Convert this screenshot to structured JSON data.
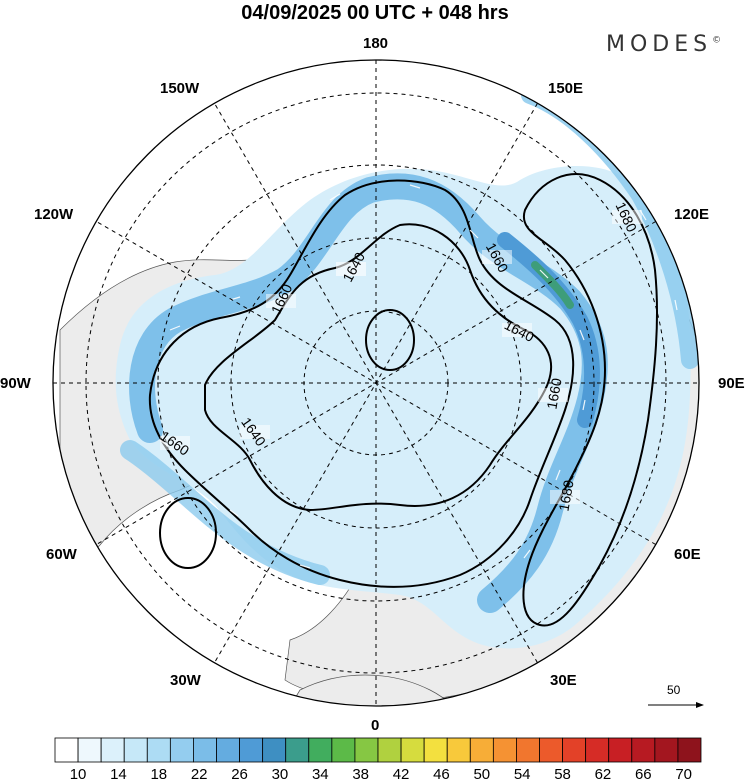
{
  "title": "04/09/2025  00 UTC  + 048 hrs",
  "brand": {
    "name": "MODES",
    "mark": "©"
  },
  "longitudes": [
    "180",
    "150E",
    "120E",
    "90E",
    "60E",
    "30E",
    "0",
    "30W",
    "60W",
    "90W",
    "120W",
    "150W"
  ],
  "contour_labels": [
    "1640",
    "1660",
    "1680"
  ],
  "vector_scale": {
    "label": "50"
  },
  "colorbar": {
    "ticks": [
      "10",
      "14",
      "18",
      "22",
      "26",
      "30",
      "34",
      "38",
      "42",
      "46",
      "50",
      "54",
      "58",
      "62",
      "66",
      "70"
    ],
    "colors": [
      "#ffffff",
      "#eef8fd",
      "#dcf1fb",
      "#c6e8f8",
      "#addcf4",
      "#94cdef",
      "#7bbde8",
      "#64ace0",
      "#4f9bd6",
      "#3e8fc2",
      "#3b9d8c",
      "#41ad5e",
      "#5cba48",
      "#86c743",
      "#b0d13f",
      "#d6dc3e",
      "#f3e03f",
      "#f8c93b",
      "#f7ad37",
      "#f59233",
      "#f1762e",
      "#ec5a2b",
      "#e34128",
      "#d62c26",
      "#c81f24",
      "#b71a22",
      "#a3161f",
      "#8e131c"
    ]
  }
}
